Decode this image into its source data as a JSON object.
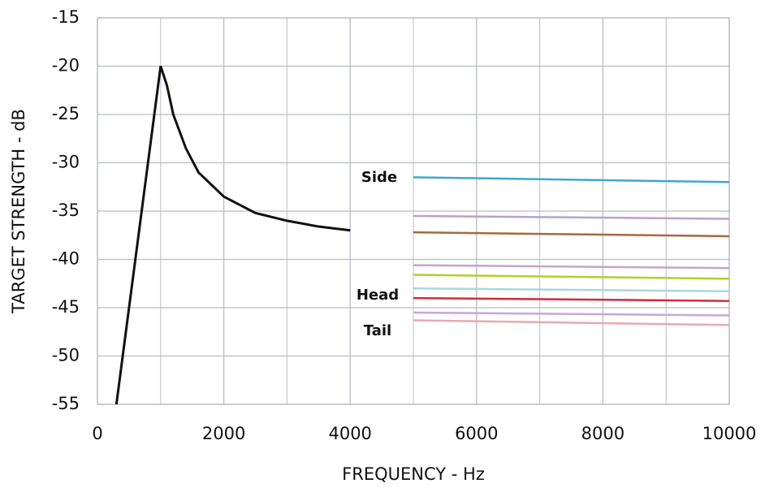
{
  "chart_data": {
    "type": "line",
    "xlabel": "FREQUENCY - Hz",
    "ylabel": "TARGET STRENGTH - dB",
    "xlim": [
      0,
      10000
    ],
    "xticks": [
      0,
      2000,
      4000,
      6000,
      8000,
      10000
    ],
    "x_minor_grid": [
      1000,
      3000,
      5000,
      7000,
      9000
    ],
    "ylim": [
      -55,
      -15
    ],
    "yticks": [
      -55,
      -50,
      -45,
      -40,
      -35,
      -30,
      -25,
      -20,
      -15
    ],
    "grid": true,
    "annotations": [
      "Side",
      "Head",
      "Tail"
    ],
    "series": [
      {
        "color": "#111111",
        "x": [
          300,
          1000,
          1100,
          1200,
          1400,
          1600,
          2000,
          2500,
          3000,
          3500,
          4000
        ],
        "values": [
          -55,
          -20,
          -22,
          -25,
          -28.5,
          -31,
          -33.5,
          -35.2,
          -36,
          -36.6,
          -37
        ]
      },
      {
        "color": "#3fa6d6",
        "x": [
          5000,
          10000
        ],
        "values": [
          -31.5,
          -32
        ]
      },
      {
        "color": "#b8a3c9",
        "x": [
          5000,
          10000
        ],
        "values": [
          -35.5,
          -35.8
        ]
      },
      {
        "color": "#a8683e",
        "x": [
          5000,
          10000
        ],
        "values": [
          -37.2,
          -37.6
        ]
      },
      {
        "color": "#c2a6cc",
        "x": [
          5000,
          10000
        ],
        "values": [
          -40.6,
          -40.9
        ]
      },
      {
        "color": "#b8cc2a",
        "x": [
          5000,
          10000
        ],
        "values": [
          -41.6,
          -42
        ]
      },
      {
        "color": "#a9d8df",
        "x": [
          5000,
          10000
        ],
        "values": [
          -43,
          -43.3
        ]
      },
      {
        "color": "#d42a3a",
        "x": [
          5000,
          10000
        ],
        "values": [
          -44,
          -44.3
        ]
      },
      {
        "color": "#c7a8d4",
        "x": [
          5000,
          10000
        ],
        "values": [
          -45.5,
          -45.8
        ]
      },
      {
        "color": "#e7a9b6",
        "x": [
          5000,
          10000
        ],
        "values": [
          -46.3,
          -46.8
        ]
      }
    ]
  }
}
